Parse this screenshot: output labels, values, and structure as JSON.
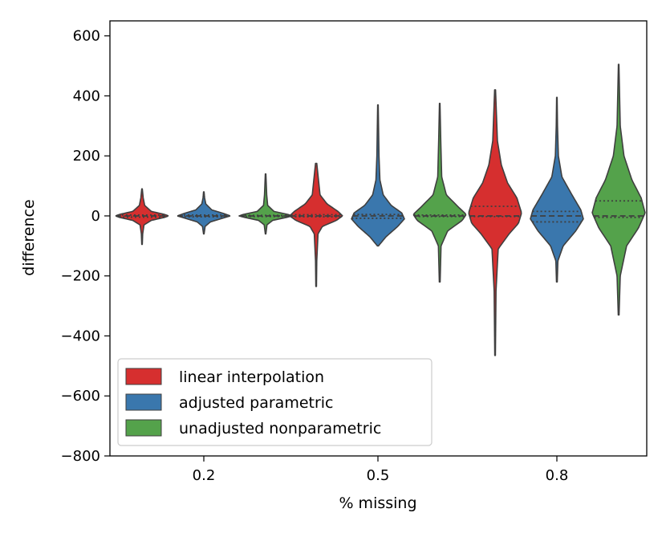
{
  "chart_data": {
    "type": "violin",
    "title": "",
    "xlabel": "% missing",
    "ylabel": "difference",
    "ylim": [
      -800,
      650
    ],
    "yticks": [
      -800,
      -600,
      -400,
      -200,
      0,
      200,
      400,
      600
    ],
    "ytick_labels": [
      "−800",
      "−600",
      "−400",
      "−200",
      "0",
      "200",
      "400",
      "600"
    ],
    "categories": [
      "0.2",
      "0.5",
      "0.8"
    ],
    "legend_position": "lower-left",
    "series": [
      {
        "name": "linear interpolation",
        "color": "#d62f2f",
        "violins": [
          {
            "category": "0.2",
            "min": -95,
            "max": 90,
            "q1": -4,
            "median": 0,
            "q3": 3,
            "profile": [
              [
                -95,
                0.2
              ],
              [
                -60,
                0.5
              ],
              [
                -30,
                1.5
              ],
              [
                -15,
                7
              ],
              [
                -5,
                17
              ],
              [
                0,
                20
              ],
              [
                5,
                17
              ],
              [
                15,
                7
              ],
              [
                35,
                2
              ],
              [
                60,
                0.9
              ],
              [
                90,
                0.2
              ]
            ]
          },
          {
            "category": "0.5",
            "min": -235,
            "max": 175,
            "q1": -3,
            "median": 0,
            "q3": 4,
            "profile": [
              [
                -235,
                0.2
              ],
              [
                -150,
                0.4
              ],
              [
                -60,
                1.2
              ],
              [
                -35,
                4
              ],
              [
                -15,
                13
              ],
              [
                0,
                17
              ],
              [
                15,
                14
              ],
              [
                40,
                7
              ],
              [
                70,
                2.5
              ],
              [
                120,
                1.5
              ],
              [
                175,
                0.4
              ]
            ]
          },
          {
            "category": "0.8",
            "min": -465,
            "max": 420,
            "q1": -2,
            "median": 0,
            "q3": 32,
            "profile": [
              [
                -465,
                0.2
              ],
              [
                -250,
                0.6
              ],
              [
                -110,
                2
              ],
              [
                -60,
                9
              ],
              [
                -25,
                15
              ],
              [
                10,
                17
              ],
              [
                60,
                14
              ],
              [
                110,
                8
              ],
              [
                170,
                4
              ],
              [
                250,
                1.5
              ],
              [
                420,
                0.3
              ]
            ]
          }
        ]
      },
      {
        "name": "adjusted parametric",
        "color": "#3a77ad",
        "violins": [
          {
            "category": "0.2",
            "min": -60,
            "max": 80,
            "q1": -3,
            "median": 0,
            "q3": 3,
            "profile": [
              [
                -60,
                0.2
              ],
              [
                -35,
                1
              ],
              [
                -20,
                5
              ],
              [
                -8,
                14
              ],
              [
                0,
                20
              ],
              [
                8,
                15
              ],
              [
                20,
                6
              ],
              [
                40,
                1.5
              ],
              [
                60,
                0.6
              ],
              [
                80,
                0.2
              ]
            ]
          },
          {
            "category": "0.5",
            "min": -100,
            "max": 370,
            "q1": -8,
            "median": 0,
            "q3": 5,
            "profile": [
              [
                -100,
                0.4
              ],
              [
                -70,
                6
              ],
              [
                -35,
                15
              ],
              [
                -10,
                20
              ],
              [
                10,
                18
              ],
              [
                35,
                10
              ],
              [
                70,
                4
              ],
              [
                120,
                1.5
              ],
              [
                200,
                0.8
              ],
              [
                370,
                0.2
              ]
            ]
          },
          {
            "category": "0.8",
            "min": -220,
            "max": 395,
            "q1": -20,
            "median": 0,
            "q3": 15,
            "profile": [
              [
                -220,
                0.3
              ],
              [
                -150,
                0.8
              ],
              [
                -100,
                5
              ],
              [
                -50,
                15
              ],
              [
                -10,
                21
              ],
              [
                20,
                19
              ],
              [
                70,
                12
              ],
              [
                130,
                4
              ],
              [
                200,
                1.2
              ],
              [
                300,
                0.5
              ],
              [
                395,
                0.2
              ]
            ]
          }
        ]
      },
      {
        "name": "unadjusted nonparametric",
        "color": "#54a24b",
        "violins": [
          {
            "category": "0.2",
            "min": -60,
            "max": 140,
            "q1": -2,
            "median": 0,
            "q3": 2,
            "profile": [
              [
                -60,
                0.2
              ],
              [
                -30,
                1
              ],
              [
                -15,
                5
              ],
              [
                -5,
                15
              ],
              [
                0,
                19
              ],
              [
                5,
                16
              ],
              [
                15,
                6
              ],
              [
                35,
                1.5
              ],
              [
                70,
                0.8
              ],
              [
                140,
                0.2
              ]
            ]
          },
          {
            "category": "0.5",
            "min": -220,
            "max": 375,
            "q1": -2,
            "median": 0,
            "q3": 3,
            "profile": [
              [
                -220,
                0.3
              ],
              [
                -100,
                1
              ],
              [
                -50,
                6
              ],
              [
                -15,
                17
              ],
              [
                5,
                20
              ],
              [
                30,
                14
              ],
              [
                70,
                5
              ],
              [
                130,
                1.5
              ],
              [
                250,
                0.8
              ],
              [
                375,
                0.2
              ]
            ]
          },
          {
            "category": "0.8",
            "min": -330,
            "max": 505,
            "q1": -5,
            "median": 0,
            "q3": 50,
            "profile": [
              [
                -330,
                0.3
              ],
              [
                -200,
                1.2
              ],
              [
                -100,
                6
              ],
              [
                -40,
                15
              ],
              [
                10,
                20
              ],
              [
                60,
                17
              ],
              [
                120,
                10
              ],
              [
                200,
                4
              ],
              [
                300,
                1.2
              ],
              [
                505,
                0.2
              ]
            ]
          }
        ]
      }
    ]
  }
}
